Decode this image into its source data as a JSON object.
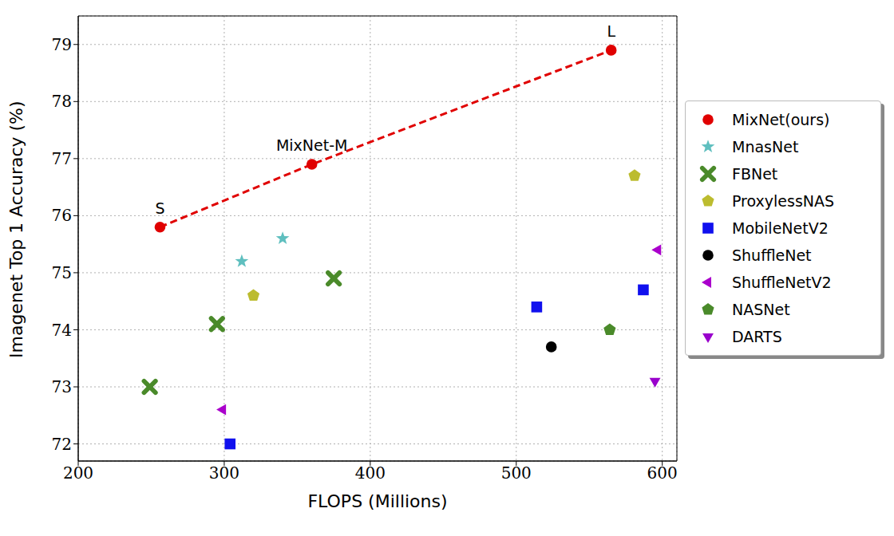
{
  "chart_data": {
    "type": "scatter",
    "x_label": "FLOPS (Millions)",
    "y_label": "Imagenet Top 1 Accuracy (%)",
    "xlim": [
      200,
      610
    ],
    "ylim": [
      71.7,
      79.5
    ],
    "xticks": [
      200,
      300,
      400,
      500,
      600
    ],
    "yticks": [
      72,
      73,
      74,
      75,
      76,
      77,
      78,
      79
    ],
    "grid": true,
    "legend": "right",
    "series": [
      {
        "name": "MixNet(ours)",
        "color": "#e00000",
        "marker": "circle",
        "line_style": "dashed",
        "x": [
          256,
          360,
          565
        ],
        "values": [
          75.8,
          76.9,
          78.9
        ],
        "labels": [
          "S",
          "MixNet-M",
          "L"
        ]
      },
      {
        "name": "MnasNet",
        "color": "#5fbfbf",
        "marker": "star",
        "x": [
          312,
          340
        ],
        "values": [
          75.2,
          75.6
        ]
      },
      {
        "name": "FBNet",
        "color": "#4a8a2a",
        "marker": "x",
        "x": [
          249,
          295,
          375
        ],
        "values": [
          73.0,
          74.1,
          74.9
        ]
      },
      {
        "name": "ProxylessNAS",
        "color": "#bcbc2f",
        "marker": "pentagon",
        "x": [
          320,
          581
        ],
        "values": [
          74.6,
          76.7
        ]
      },
      {
        "name": "MobileNetV2",
        "color": "#1010ee",
        "marker": "square",
        "x": [
          304,
          514,
          587
        ],
        "values": [
          72.0,
          74.4,
          74.7
        ]
      },
      {
        "name": "ShuffleNet",
        "color": "#000000",
        "marker": "circle",
        "x": [
          524
        ],
        "values": [
          73.7
        ]
      },
      {
        "name": "ShuffleNetV2",
        "color": "#aa00cc",
        "marker": "triangle-left",
        "x": [
          299,
          597
        ],
        "values": [
          72.6,
          75.4
        ]
      },
      {
        "name": "NASNet",
        "color": "#4a8a2a",
        "marker": "pentagon",
        "x": [
          564
        ],
        "values": [
          74.0
        ]
      },
      {
        "name": "DARTS",
        "color": "#9900cc",
        "marker": "triangle-down",
        "x": [
          595
        ],
        "values": [
          73.1
        ]
      }
    ]
  }
}
